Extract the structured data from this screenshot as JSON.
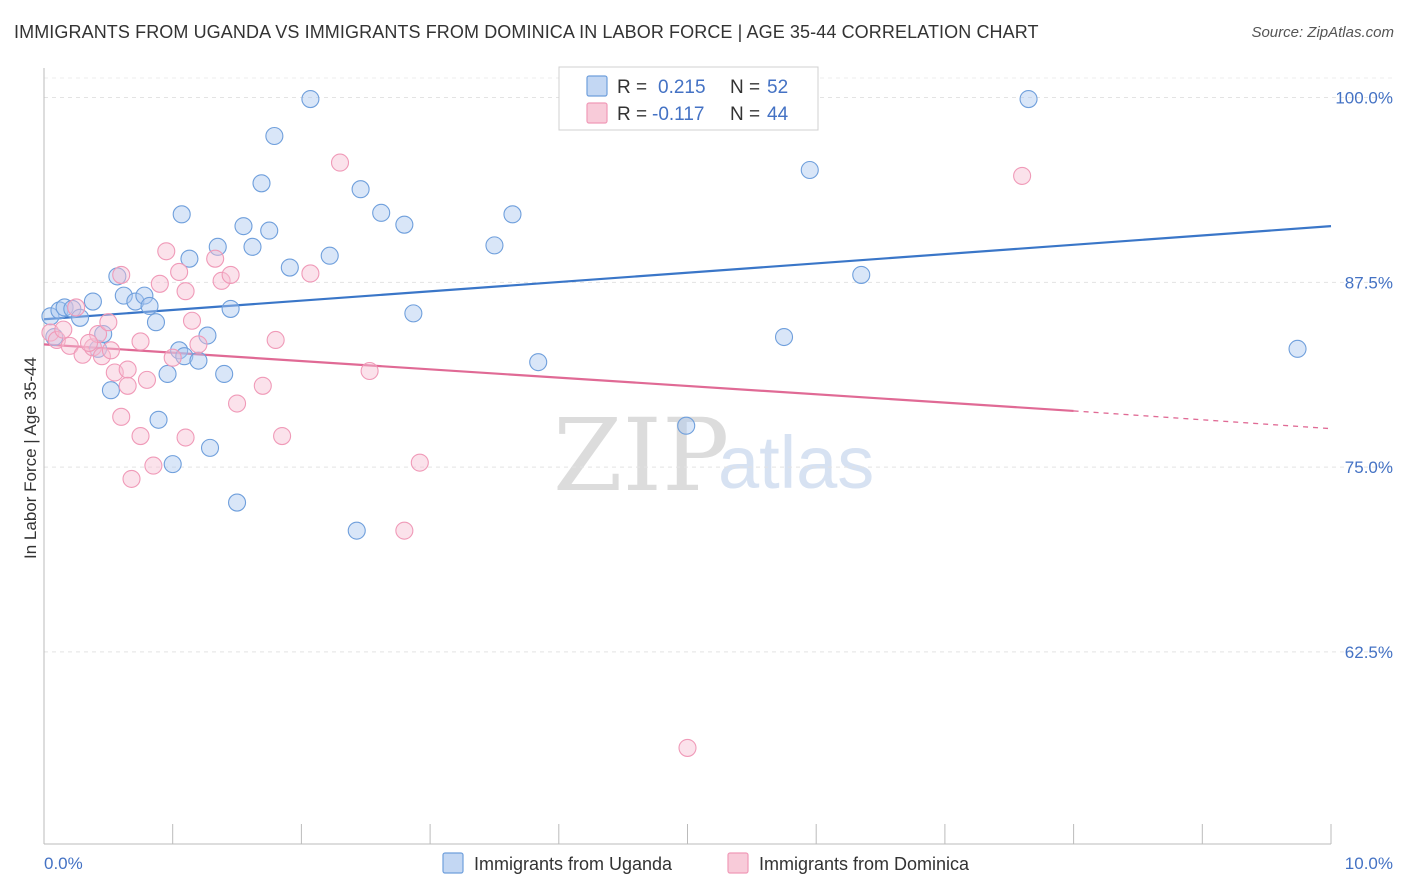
{
  "title": "IMMIGRANTS FROM UGANDA VS IMMIGRANTS FROM DOMINICA IN LABOR FORCE | AGE 35-44 CORRELATION CHART",
  "source": "Source: ZipAtlas.com",
  "watermark": {
    "zip": "ZIP",
    "atlas": "atlas"
  },
  "legend": {
    "uganda": {
      "r_label": "R =",
      "r_value": "0.215",
      "n_label": "N =",
      "n_value": "52"
    },
    "dominica": {
      "r_label": "R =",
      "r_value": "-0.117",
      "n_label": "N =",
      "n_value": "44"
    }
  },
  "chart_data": {
    "type": "scatter",
    "title": "IMMIGRANTS FROM UGANDA VS IMMIGRANTS FROM DOMINICA IN LABOR FORCE | AGE 35-44 CORRELATION CHART",
    "xlabel": "",
    "ylabel": "In Labor Force | Age 35-44",
    "xlim": [
      0,
      10
    ],
    "ylim": [
      49.5,
      102
    ],
    "x_tick_labels": [
      "0.0%",
      "10.0%"
    ],
    "y_ticks": [
      62.5,
      75.0,
      87.5,
      100.0
    ],
    "y_tick_labels": [
      "62.5%",
      "75.0%",
      "87.5%",
      "100.0%"
    ],
    "grid": true,
    "legend_position": "top-center",
    "colors": {
      "uganda": "#6f9fdc",
      "dominica": "#f09ab8",
      "uganda_line": "#3a76c8",
      "dominica_line": "#e06a95"
    },
    "series": [
      {
        "name": "Immigrants from Uganda",
        "r": 0.215,
        "n": 52,
        "trend": {
          "x0": 0.0,
          "y0": 85.0,
          "x1": 10.0,
          "y1": 91.3
        },
        "points": [
          [
            0.05,
            85.2
          ],
          [
            0.08,
            83.8
          ],
          [
            0.12,
            85.6
          ],
          [
            0.16,
            85.8
          ],
          [
            0.22,
            85.7
          ],
          [
            0.28,
            85.1
          ],
          [
            0.38,
            86.2
          ],
          [
            0.42,
            83.0
          ],
          [
            0.46,
            84.0
          ],
          [
            0.52,
            80.2
          ],
          [
            0.57,
            87.9
          ],
          [
            0.62,
            86.6
          ],
          [
            0.71,
            86.2
          ],
          [
            0.78,
            86.6
          ],
          [
            0.82,
            85.9
          ],
          [
            0.87,
            84.8
          ],
          [
            0.89,
            78.2
          ],
          [
            0.96,
            81.3
          ],
          [
            1.0,
            75.2
          ],
          [
            1.05,
            82.9
          ],
          [
            1.07,
            92.1
          ],
          [
            1.09,
            82.5
          ],
          [
            1.13,
            89.1
          ],
          [
            1.2,
            82.2
          ],
          [
            1.27,
            83.9
          ],
          [
            1.29,
            76.3
          ],
          [
            1.35,
            89.9
          ],
          [
            1.4,
            81.3
          ],
          [
            1.45,
            85.7
          ],
          [
            1.5,
            72.6
          ],
          [
            1.55,
            91.3
          ],
          [
            1.62,
            89.9
          ],
          [
            1.69,
            94.2
          ],
          [
            1.75,
            91.0
          ],
          [
            1.79,
            97.4
          ],
          [
            1.91,
            88.5
          ],
          [
            2.07,
            99.9
          ],
          [
            2.22,
            89.3
          ],
          [
            2.43,
            70.7
          ],
          [
            2.46,
            93.8
          ],
          [
            2.62,
            92.2
          ],
          [
            2.8,
            91.4
          ],
          [
            2.87,
            85.4
          ],
          [
            3.5,
            90.0
          ],
          [
            3.64,
            92.1
          ],
          [
            3.84,
            82.1
          ],
          [
            4.99,
            77.8
          ],
          [
            5.75,
            83.8
          ],
          [
            5.95,
            95.1
          ],
          [
            6.35,
            88.0
          ],
          [
            7.65,
            99.9
          ],
          [
            9.74,
            83.0
          ]
        ]
      },
      {
        "name": "Immigrants from Dominica",
        "r": -0.117,
        "n": 44,
        "trend": {
          "x0": 0.0,
          "y0": 83.3,
          "x1": 8.0,
          "y1": 78.8,
          "dashed_to_x": 10.0,
          "dashed_to_y": 77.6
        },
        "points": [
          [
            0.05,
            84.1
          ],
          [
            0.1,
            83.6
          ],
          [
            0.15,
            84.3
          ],
          [
            0.2,
            83.2
          ],
          [
            0.25,
            85.8
          ],
          [
            0.3,
            82.6
          ],
          [
            0.38,
            83.1
          ],
          [
            0.42,
            84.0
          ],
          [
            0.45,
            82.5
          ],
          [
            0.5,
            84.8
          ],
          [
            0.52,
            82.9
          ],
          [
            0.55,
            81.4
          ],
          [
            0.6,
            88.0
          ],
          [
            0.65,
            81.6
          ],
          [
            0.6,
            78.4
          ],
          [
            0.65,
            80.5
          ],
          [
            0.68,
            74.2
          ],
          [
            0.75,
            83.5
          ],
          [
            0.75,
            77.1
          ],
          [
            0.8,
            80.9
          ],
          [
            0.85,
            75.1
          ],
          [
            0.9,
            87.4
          ],
          [
            0.95,
            89.6
          ],
          [
            1.0,
            82.4
          ],
          [
            1.05,
            88.2
          ],
          [
            1.1,
            86.9
          ],
          [
            1.1,
            77.0
          ],
          [
            1.15,
            84.9
          ],
          [
            1.2,
            83.3
          ],
          [
            1.33,
            89.1
          ],
          [
            1.38,
            87.6
          ],
          [
            1.45,
            88.0
          ],
          [
            1.5,
            79.3
          ],
          [
            1.7,
            80.5
          ],
          [
            1.8,
            83.6
          ],
          [
            1.85,
            77.1
          ],
          [
            2.07,
            88.1
          ],
          [
            2.3,
            95.6
          ],
          [
            2.53,
            81.5
          ],
          [
            2.8,
            70.7
          ],
          [
            2.92,
            75.3
          ],
          [
            5.0,
            56.0
          ],
          [
            7.6,
            94.7
          ],
          [
            0.35,
            83.4
          ]
        ]
      }
    ]
  },
  "bottom_legend": {
    "uganda": "Immigrants from Uganda",
    "dominica": "Immigrants from Dominica"
  }
}
